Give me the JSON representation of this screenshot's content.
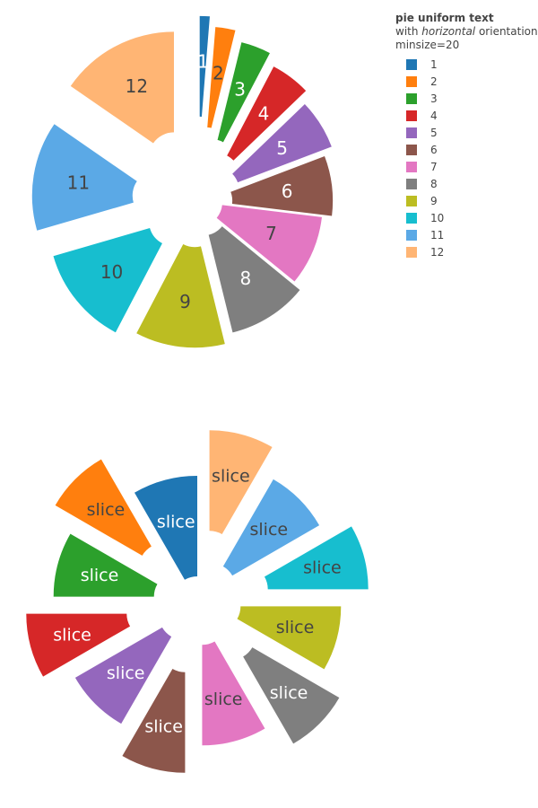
{
  "chart_data": [
    {
      "type": "pie",
      "legend": {
        "title": {
          "bold": "pie uniform text",
          "prefix": "with ",
          "italic": "horizontal",
          "suffix": " orientation",
          "line3": "minsize=20"
        },
        "placement": "top-right"
      },
      "labels": [
        "1",
        "2",
        "3",
        "4",
        "5",
        "6",
        "7",
        "8",
        "9",
        "10",
        "11",
        "12"
      ],
      "values": [
        1,
        2,
        3,
        4,
        5,
        6,
        7,
        8,
        9,
        10,
        11,
        12
      ],
      "text": [
        "1",
        "2",
        "3",
        "4",
        "5",
        "6",
        "7",
        "8",
        "9",
        "10",
        "11",
        "12"
      ],
      "colors": [
        "#1f77b4",
        "#ff7f0e",
        "#2ca02c",
        "#d62728",
        "#9467bd",
        "#8c564b",
        "#e377c2",
        "#7f7f7f",
        "#bcbd22",
        "#17becf",
        "#5ba9e6",
        "#ffb574"
      ],
      "pull": [
        0.6,
        0.5,
        0.4,
        0.3,
        0.2,
        0.1,
        0.0,
        0.1,
        0.2,
        0.3,
        0.4,
        0.5
      ],
      "hole": 0.2,
      "direction": "clockwise",
      "rotation": 0
    },
    {
      "type": "pie",
      "labels": [
        "1",
        "2",
        "3",
        "4",
        "5",
        "6",
        "7",
        "8",
        "9",
        "10",
        "11",
        "12"
      ],
      "values": [
        1,
        1,
        1,
        1,
        1,
        1,
        1,
        1,
        1,
        1,
        1,
        1
      ],
      "text": [
        "slice",
        "slice",
        "slice",
        "slice",
        "slice",
        "slice",
        "slice",
        "slice",
        "slice",
        "slice",
        "slice",
        "slice"
      ],
      "colors": [
        "#1f77b4",
        "#ff7f0e",
        "#2ca02c",
        "#d62728",
        "#9467bd",
        "#8c564b",
        "#e377c2",
        "#7f7f7f",
        "#bcbd22",
        "#17becf",
        "#5ba9e6",
        "#ffb574"
      ],
      "pull": [
        0.0,
        0.5,
        0.2,
        0.5,
        0.2,
        0.5,
        0.2,
        0.5,
        0.2,
        0.5,
        0.2,
        0.5
      ],
      "hole": 0.2,
      "direction": "counterclockwise",
      "rotation": 0
    }
  ]
}
